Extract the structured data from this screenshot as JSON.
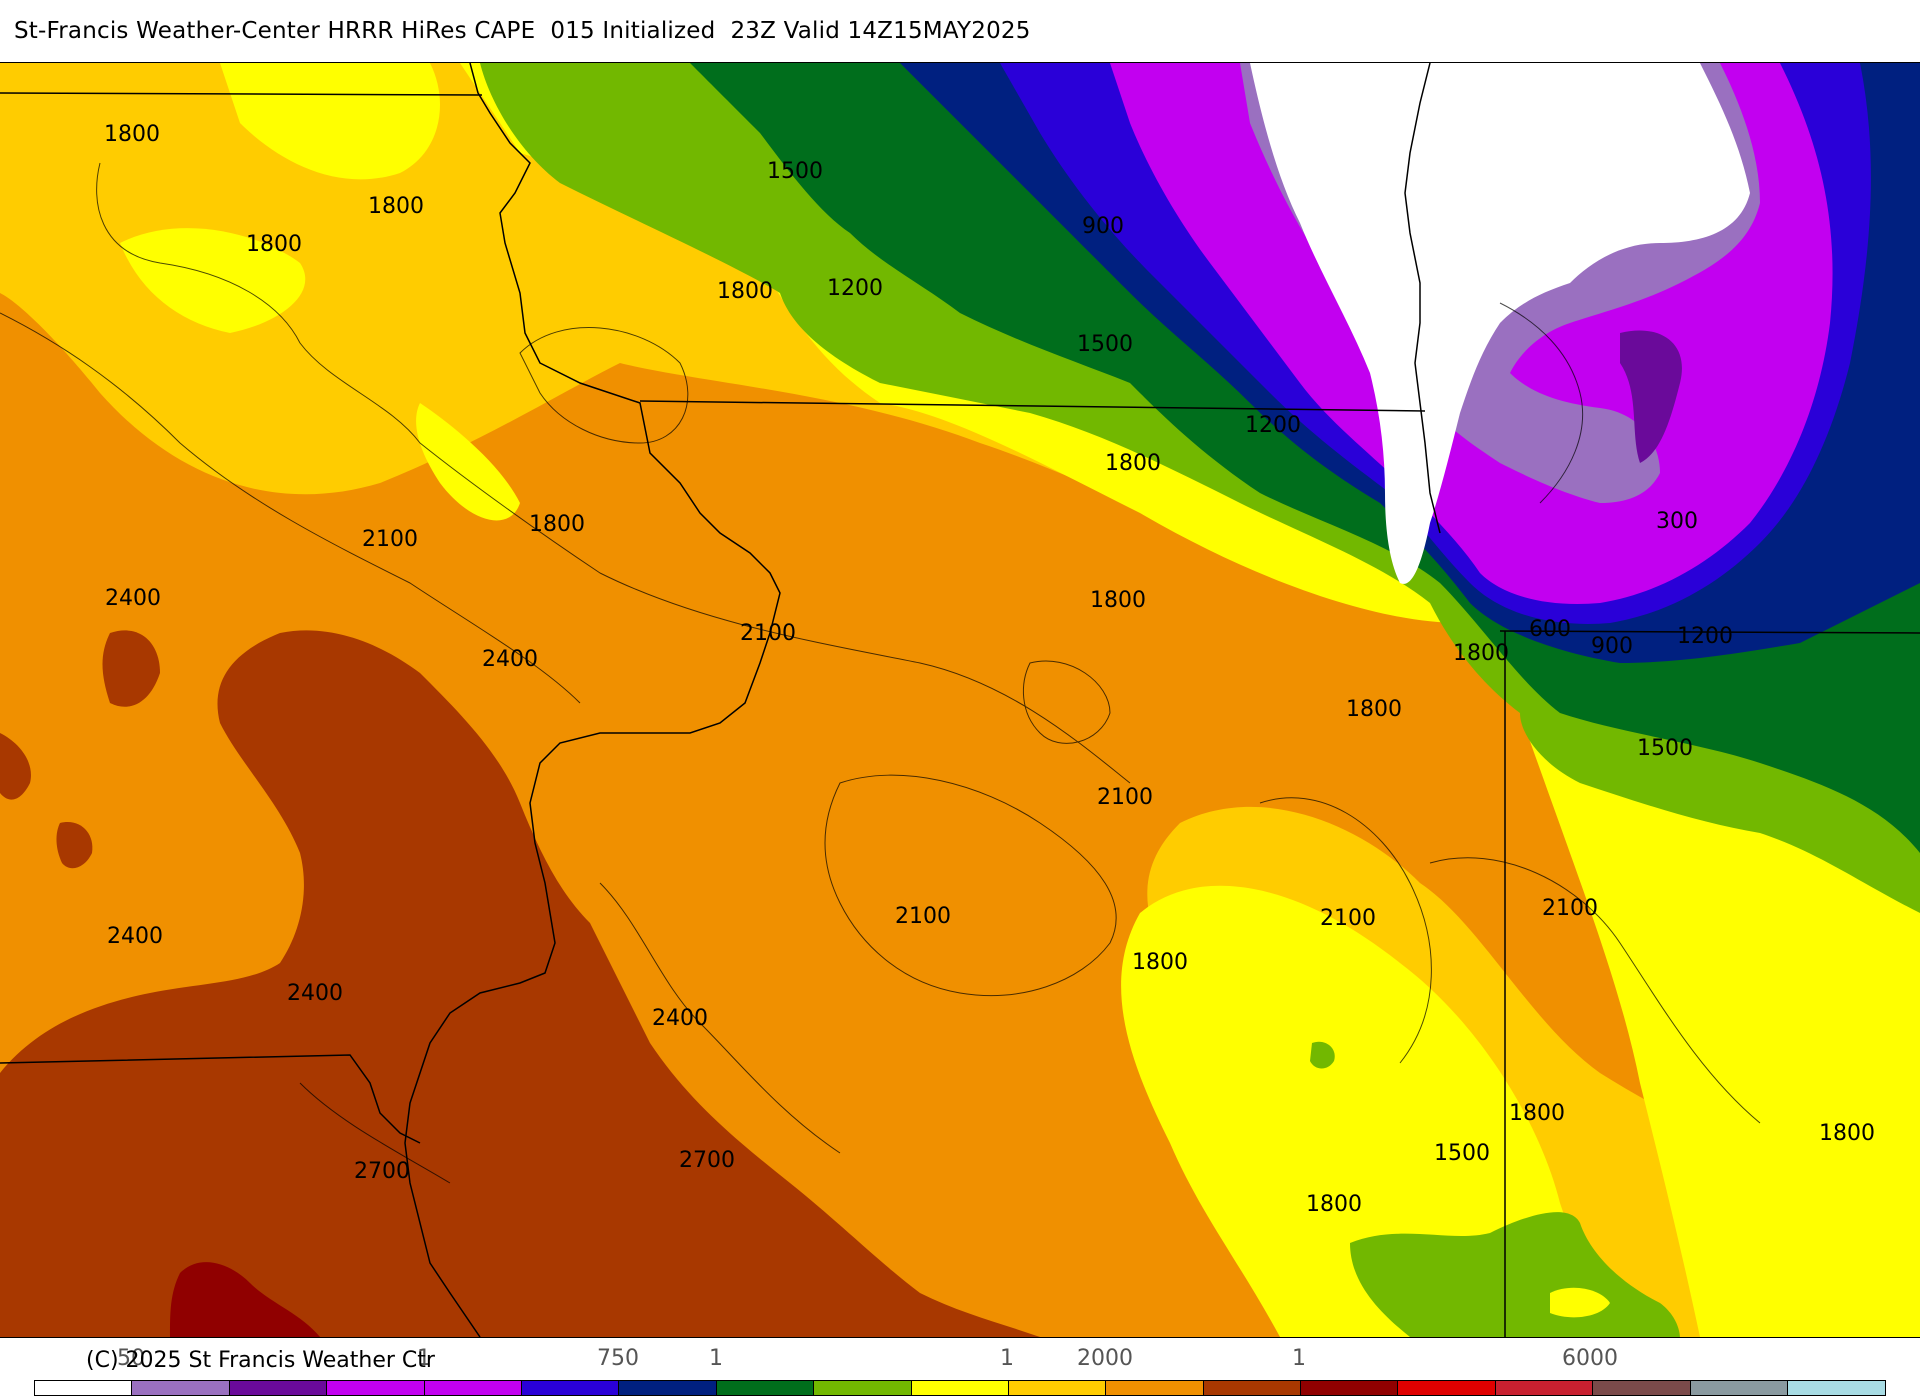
{
  "header": {
    "title": "St-Francis Weather-Center HRRR HiRes CAPE  015 Initialized  23Z Valid 14Z15MAY2025"
  },
  "map": {
    "field": "CAPE",
    "colors": {
      "c_0": "#ffffff",
      "c_300": "#9a70c0",
      "c_600": "#6a0a9a",
      "c_900_purple": "#c200f0",
      "c_blue": "#2a00d8",
      "c_navy": "#002080",
      "c_1200": "#006e1c",
      "c_1500": "#72b800",
      "c_1800_yellow": "#ffff00",
      "c_1800": "#ffcc00",
      "c_2100": "#f09000",
      "c_2400": "#a83800",
      "c_2700": "#900000"
    },
    "contour_labels": [
      {
        "text": "1800"
      },
      {
        "text": "1800"
      },
      {
        "text": "1800"
      },
      {
        "text": "1500"
      },
      {
        "text": "1800"
      },
      {
        "text": "1200"
      },
      {
        "text": "900"
      },
      {
        "text": "1500"
      },
      {
        "text": "1200"
      },
      {
        "text": "1800"
      },
      {
        "text": "300"
      },
      {
        "text": "2100"
      },
      {
        "text": "1800"
      },
      {
        "text": "2400"
      },
      {
        "text": "2100"
      },
      {
        "text": "1800"
      },
      {
        "text": "600"
      },
      {
        "text": "900"
      },
      {
        "text": "1200"
      },
      {
        "text": "2400"
      },
      {
        "text": "1800"
      },
      {
        "text": "1800"
      },
      {
        "text": "1500"
      },
      {
        "text": "2100"
      },
      {
        "text": "2400"
      },
      {
        "text": "2100"
      },
      {
        "text": "2100"
      },
      {
        "text": "2100"
      },
      {
        "text": "2400"
      },
      {
        "text": "1800"
      },
      {
        "text": "2400"
      },
      {
        "text": "1800"
      },
      {
        "text": "1800"
      },
      {
        "text": "1500"
      },
      {
        "text": "2700"
      },
      {
        "text": "2700"
      },
      {
        "text": "1800"
      }
    ]
  },
  "legend": {
    "copyright": "(C) 2025 St Francis Weather Ctr",
    "scale_labels": [
      "50",
      "1",
      "750",
      "1",
      "1",
      "2000",
      "1",
      "6000"
    ],
    "colorbar": [
      "#ffffff",
      "#9a70c0",
      "#6a0a9a",
      "#c200f0",
      "#c200f0",
      "#2a00d8",
      "#002080",
      "#006e1c",
      "#72b800",
      "#ffff00",
      "#ffcc00",
      "#f09000",
      "#a83800",
      "#900000",
      "#e00000",
      "#c82030",
      "#7a4a4a",
      "#8a9aa0",
      "#a8dce4"
    ]
  }
}
